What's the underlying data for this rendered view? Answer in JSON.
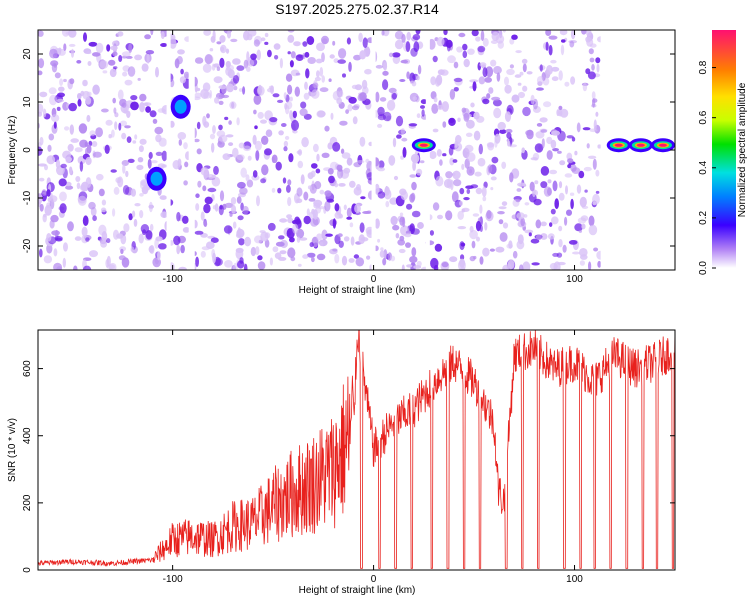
{
  "figure_title": "S197.2025.275.02.37.R14",
  "colors": {
    "speckle_light": "#d9c2f7",
    "speckle_mid": "#b58af0",
    "speckle_dark": "#6a1be8",
    "snr_line": "#e8211d"
  },
  "chart_data": [
    {
      "type": "heatmap",
      "title": "S197.2025.275.02.37.R14",
      "xlabel": "Height of straight line (km)",
      "ylabel": "Frequency (Hz)",
      "xlim": [
        -167,
        150
      ],
      "ylim": [
        -25,
        25
      ],
      "x_ticks": [
        -100,
        0,
        100
      ],
      "x_tick_labels": [
        "-100",
        "0",
        "100"
      ],
      "y_ticks": [
        -20,
        -10,
        0,
        10,
        20
      ],
      "y_tick_labels": [
        "-20",
        "-10",
        "0",
        "10",
        "20"
      ],
      "colorbar": {
        "label": "Normalized spectral amplitude",
        "range": [
          0,
          0.95
        ],
        "ticks": [
          0.0,
          0.2,
          0.4,
          0.6,
          0.8
        ],
        "tick_labels": [
          "0.0",
          "0.2",
          "0.4",
          "0.6",
          "0.8"
        ]
      },
      "gap_columns_km": [
        [
          -103,
          -101
        ],
        [
          -92,
          -89
        ],
        [
          -1,
          1
        ],
        [
          26,
          28
        ],
        [
          113,
          150
        ]
      ],
      "peaks": [
        {
          "x": -108,
          "y": -6,
          "amplitude": 0.35
        },
        {
          "x": -96,
          "y": 9,
          "amplitude": 0.25
        },
        {
          "x": 25,
          "y": 1,
          "amplitude": 0.95
        },
        {
          "x": 122,
          "y": 1,
          "amplitude": 0.95
        },
        {
          "x": 133,
          "y": 1,
          "amplitude": 0.95
        },
        {
          "x": 144,
          "y": 1,
          "amplitude": 0.95
        }
      ]
    },
    {
      "type": "line",
      "xlabel": "Height of straight line (km)",
      "ylabel": "SNR (10 * v/v)",
      "xlim": [
        -167,
        150
      ],
      "ylim": [
        0,
        715
      ],
      "x_ticks": [
        -100,
        0,
        100
      ],
      "x_tick_labels": [
        "-100",
        "0",
        "100"
      ],
      "y_ticks": [
        0,
        200,
        400,
        600
      ],
      "y_tick_labels": [
        "0",
        "200",
        "400",
        "600"
      ],
      "series": [
        {
          "name": "SNR",
          "x": [
            -167,
            -150,
            -130,
            -110,
            -100,
            -90,
            -80,
            -70,
            -60,
            -50,
            -40,
            -30,
            -20,
            -10,
            -8,
            0,
            10,
            20,
            30,
            40,
            50,
            60,
            62,
            65,
            70,
            80,
            90,
            100,
            110,
            120,
            130,
            140,
            150
          ],
          "values": [
            20,
            25,
            20,
            30,
            90,
            100,
            90,
            130,
            140,
            190,
            230,
            260,
            300,
            420,
            715,
            360,
            440,
            480,
            560,
            620,
            560,
            440,
            240,
            200,
            640,
            660,
            600,
            620,
            560,
            640,
            600,
            620,
            660
          ],
          "dropouts_km": [
            -6,
            3,
            11,
            19,
            29,
            37,
            45,
            53,
            66,
            74,
            82,
            95,
            103,
            110,
            118,
            126,
            134,
            141,
            149
          ]
        }
      ]
    }
  ]
}
